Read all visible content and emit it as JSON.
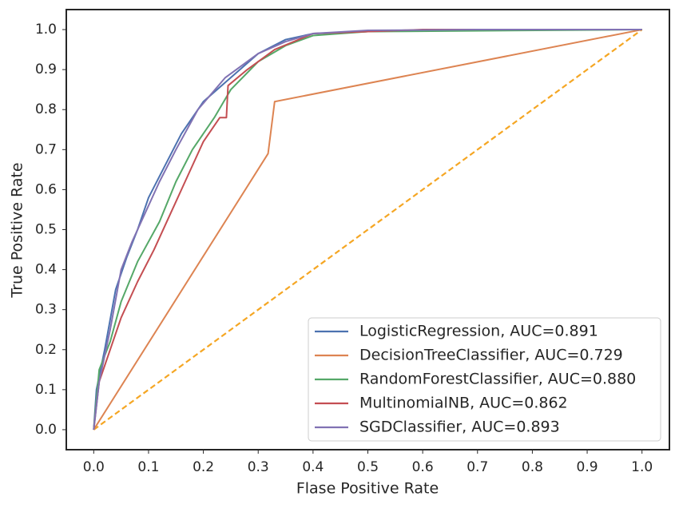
{
  "chart_data": {
    "type": "line",
    "xlabel": "Flase Positive Rate",
    "ylabel": "True Positive Rate",
    "xlim": [
      -0.05,
      1.05
    ],
    "ylim": [
      -0.05,
      1.05
    ],
    "xticks": [
      {
        "value": 0,
        "label": "0.0"
      },
      0.1,
      0.2,
      0.3,
      0.4,
      0.5,
      0.6,
      0.7,
      0.8,
      0.9,
      {
        "value": 1,
        "label": "1.0"
      }
    ],
    "yticks": [
      {
        "value": 0,
        "label": "0.0"
      },
      0.1,
      0.2,
      0.3,
      0.4,
      0.5,
      0.6,
      0.7,
      0.8,
      0.9,
      {
        "value": 1,
        "label": "1.0"
      }
    ],
    "grid": false,
    "legend": "lower right",
    "reference_line": {
      "x": [
        0,
        1
      ],
      "values": [
        0,
        1
      ],
      "color": "#f5a623",
      "dashed": true
    },
    "series": [
      {
        "name": "LogisticRegression, AUC=0.891",
        "color": "#4c72b0",
        "x": [
          0,
          0.005,
          0.02,
          0.04,
          0.06,
          0.08,
          0.1,
          0.13,
          0.16,
          0.2,
          0.25,
          0.3,
          0.35,
          0.4,
          0.5,
          0.7,
          1
        ],
        "values": [
          0,
          0.1,
          0.2,
          0.35,
          0.43,
          0.5,
          0.58,
          0.66,
          0.74,
          0.82,
          0.88,
          0.94,
          0.975,
          0.99,
          0.995,
          1,
          1
        ]
      },
      {
        "name": "DecisionTreeClassifier, AUC=0.729",
        "color": "#dd8452",
        "x": [
          0,
          0.318,
          0.33,
          1
        ],
        "values": [
          0,
          0.69,
          0.82,
          1
        ]
      },
      {
        "name": "RandomForestClassifier, AUC=0.880",
        "color": "#55a868",
        "x": [
          0,
          0.01,
          0.03,
          0.05,
          0.08,
          0.12,
          0.15,
          0.18,
          0.22,
          0.25,
          0.3,
          0.35,
          0.4,
          0.5,
          1
        ],
        "values": [
          0,
          0.15,
          0.22,
          0.32,
          0.42,
          0.52,
          0.62,
          0.7,
          0.78,
          0.85,
          0.92,
          0.96,
          0.985,
          0.995,
          1
        ]
      },
      {
        "name": "MultinomialNB, AUC=0.862",
        "color": "#c44e52",
        "x": [
          0,
          0.01,
          0.03,
          0.05,
          0.08,
          0.11,
          0.14,
          0.17,
          0.2,
          0.23,
          0.242,
          0.245,
          0.28,
          0.33,
          0.4,
          0.6,
          1
        ],
        "values": [
          0,
          0.12,
          0.2,
          0.28,
          0.37,
          0.45,
          0.54,
          0.63,
          0.72,
          0.78,
          0.78,
          0.86,
          0.9,
          0.95,
          0.99,
          1,
          1
        ]
      },
      {
        "name": "SGDClassifier, AUC=0.893",
        "color": "#8172b3",
        "x": [
          0,
          0.01,
          0.03,
          0.05,
          0.07,
          0.1,
          0.12,
          0.15,
          0.19,
          0.24,
          0.3,
          0.35,
          0.4,
          0.5,
          0.7,
          1
        ],
        "values": [
          0,
          0.12,
          0.25,
          0.4,
          0.47,
          0.56,
          0.62,
          0.7,
          0.8,
          0.88,
          0.94,
          0.97,
          0.99,
          0.998,
          1,
          1
        ]
      }
    ]
  }
}
